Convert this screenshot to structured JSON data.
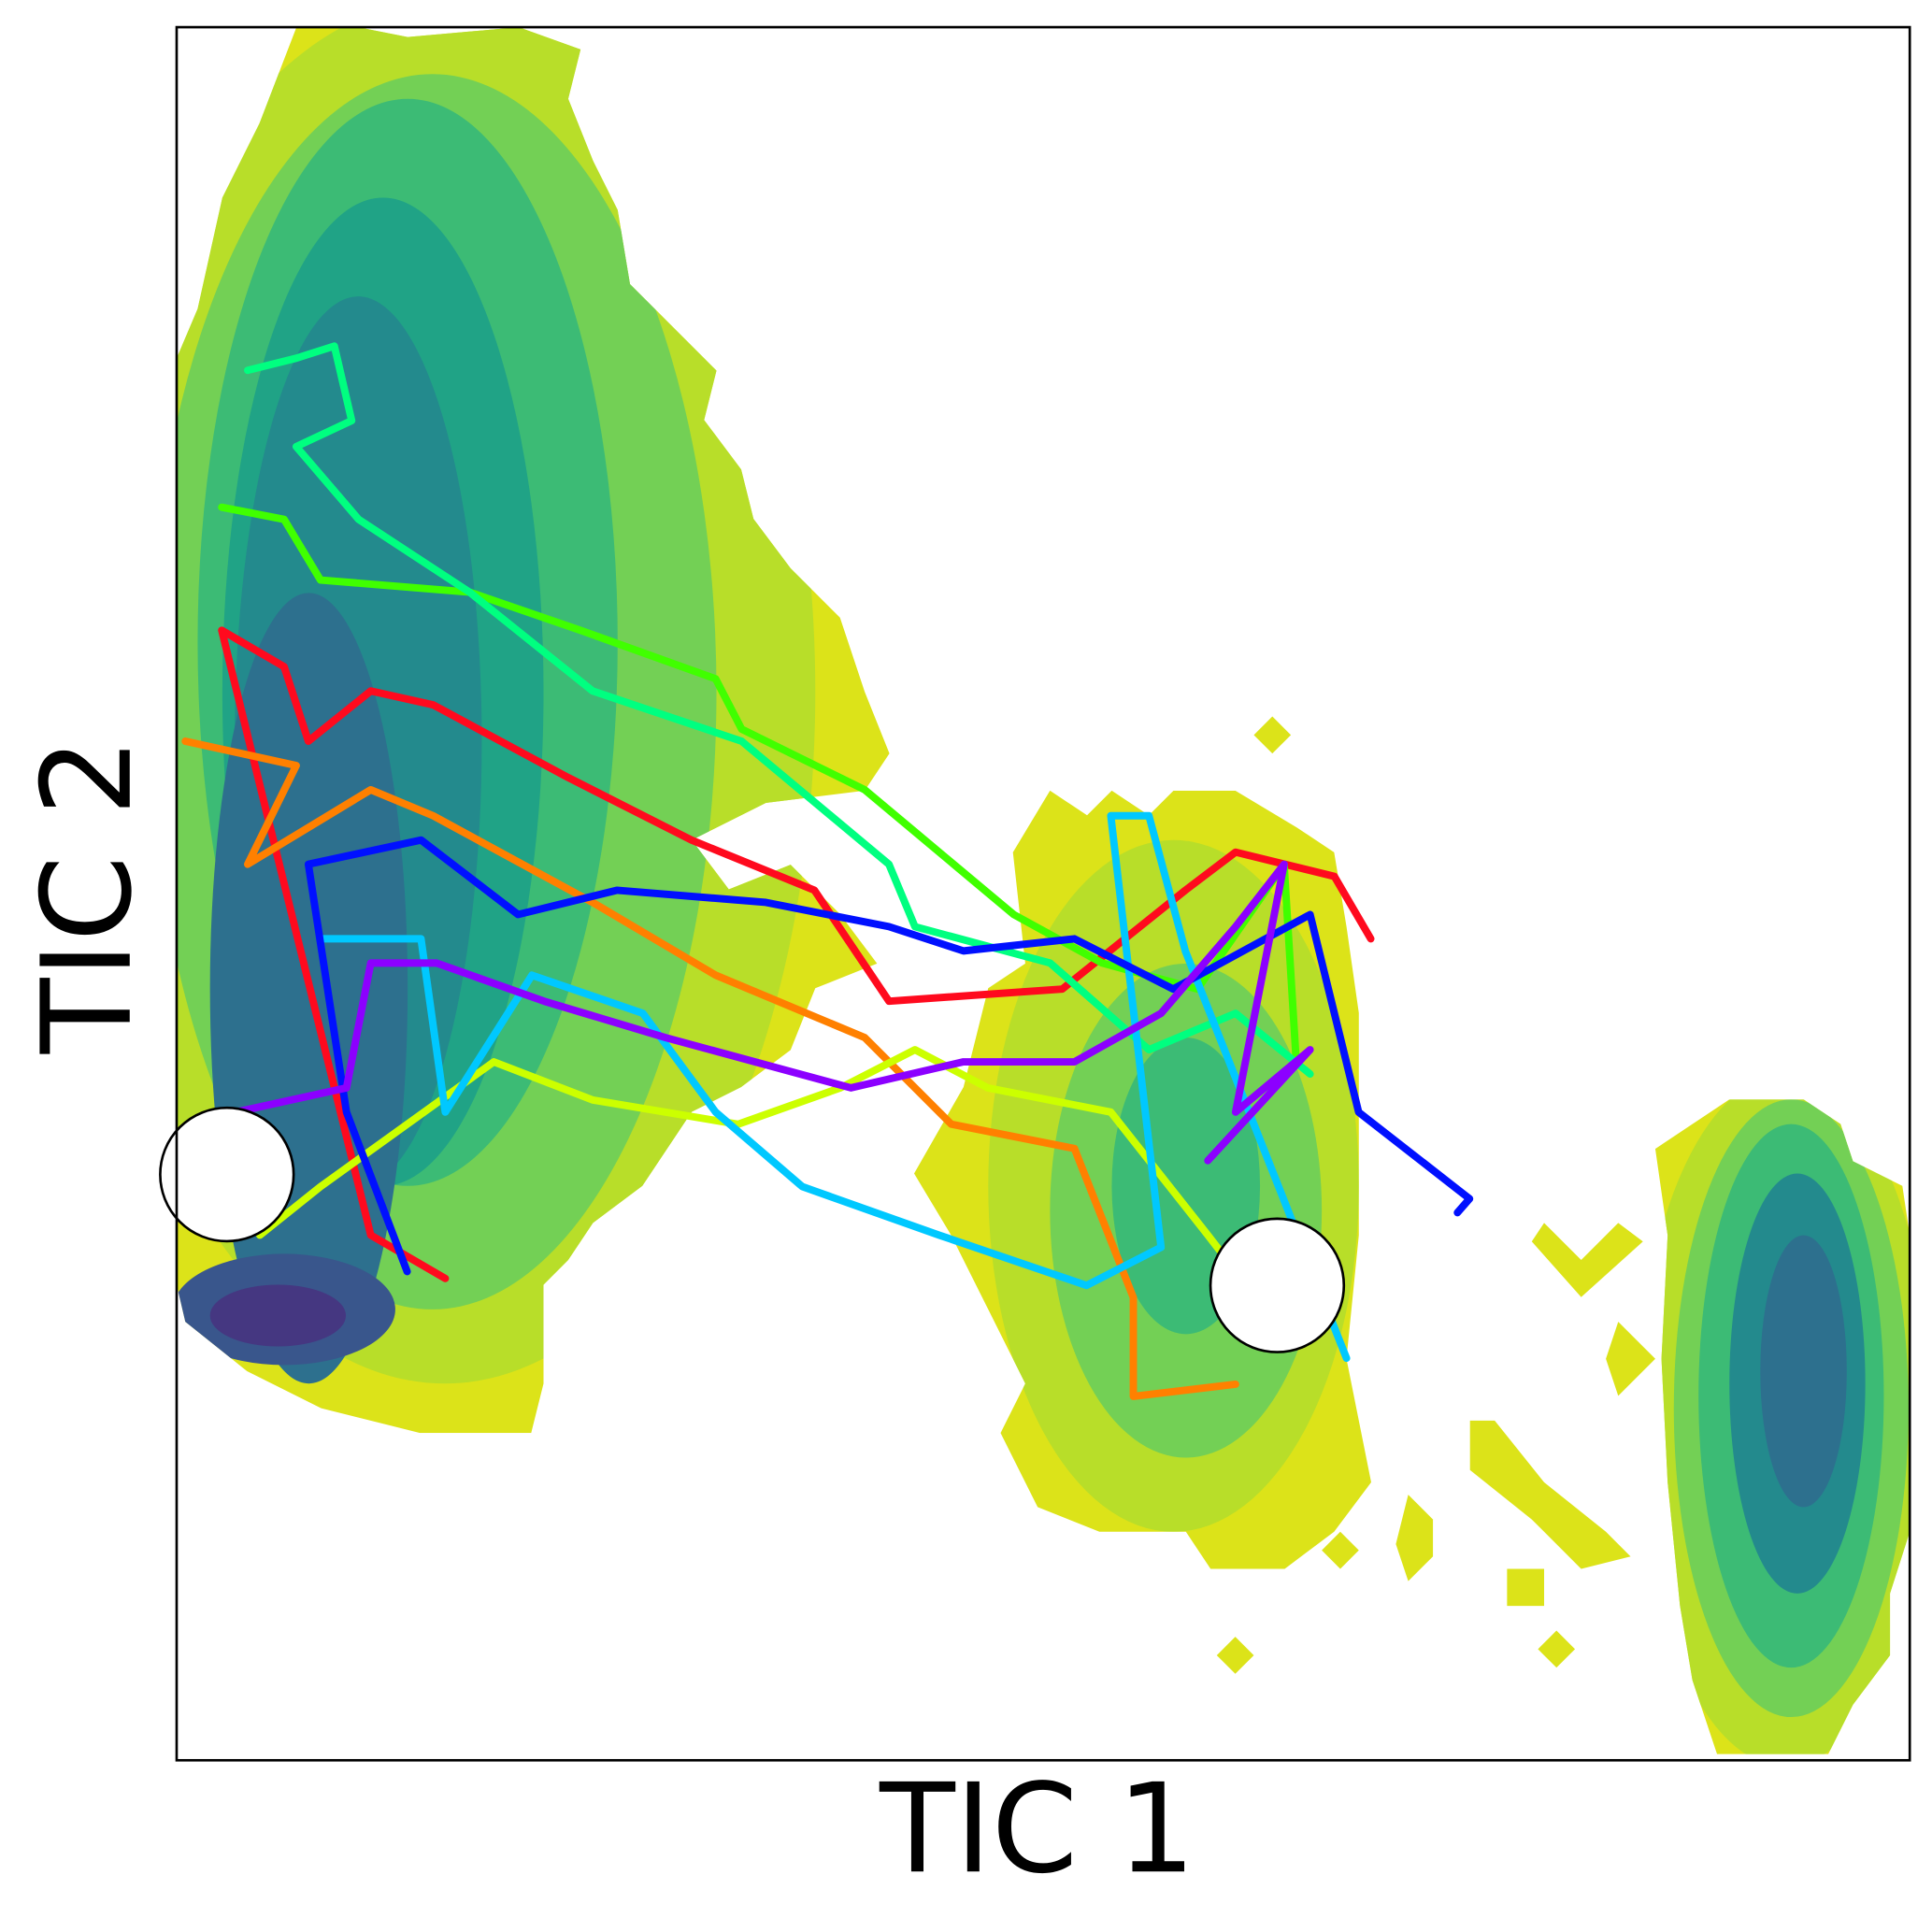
{
  "chart_data": {
    "type": "line",
    "xlabel": "TIC 1",
    "ylabel": "TIC 2",
    "xlim": [
      0,
      100
    ],
    "ylim": [
      0,
      100
    ],
    "series": [
      {
        "color": "#ff0a1e",
        "x": [
          15.5,
          11.2,
          2.6,
          6.2,
          7.6,
          11.2,
          14.8,
          22.6,
          29.7,
          36.8,
          41.1,
          51.1,
          58.2,
          61.1,
          66.8,
          68.9
        ],
        "y": [
          27.8,
          30.3,
          65.2,
          63.1,
          58.8,
          61.7,
          60.9,
          56.7,
          53.1,
          50.2,
          43.8,
          44.5,
          50.2,
          52.4,
          51.0,
          47.4
        ]
      },
      {
        "color": "#ff8000",
        "x": [
          0.5,
          6.9,
          4.1,
          11.2,
          14.8,
          24.0,
          31.1,
          39.7,
          44.7,
          51.8,
          55.2,
          55.2,
          61.1
        ],
        "y": [
          58.8,
          57.4,
          51.7,
          56.0,
          54.5,
          49.5,
          45.3,
          41.7,
          36.7,
          35.3,
          26.7,
          21.0,
          21.7
        ]
      },
      {
        "color": "#ccff00",
        "x": [
          4.8,
          8.3,
          18.3,
          24.0,
          32.4,
          38.3,
          42.6,
          46.8,
          53.9,
          59.5,
          63.9
        ],
        "y": [
          30.3,
          33.1,
          40.3,
          38.1,
          36.7,
          38.8,
          41.0,
          38.8,
          37.4,
          30.3,
          24.6
        ]
      },
      {
        "color": "#40ff00",
        "x": [
          2.6,
          6.2,
          8.3,
          16.9,
          23.3,
          31.1,
          32.6,
          39.7,
          48.3,
          53.4,
          58.9,
          63.9,
          64.6
        ],
        "y": [
          72.3,
          71.6,
          68.1,
          67.4,
          65.2,
          62.4,
          59.5,
          56.0,
          48.8,
          46.0,
          44.5,
          51.7,
          40.3
        ]
      },
      {
        "color": "#00ff80",
        "x": [
          4.1,
          6.9,
          9.1,
          10.1,
          6.9,
          10.5,
          16.9,
          24.0,
          32.6,
          41.1,
          42.6,
          50.4,
          56.1,
          61.1,
          65.4
        ],
        "y": [
          80.2,
          80.9,
          81.6,
          77.3,
          75.8,
          71.6,
          67.4,
          61.7,
          58.8,
          51.7,
          48.1,
          46.0,
          41.0,
          43.1,
          39.6
        ]
      },
      {
        "color": "#00c8ff",
        "x": [
          8.3,
          14.1,
          15.5,
          20.5,
          26.9,
          31.1,
          36.1,
          44.0,
          52.5,
          56.8,
          53.9,
          56.1,
          58.2,
          67.5
        ],
        "y": [
          47.4,
          47.4,
          37.4,
          45.3,
          43.1,
          37.4,
          33.1,
          30.3,
          27.4,
          29.6,
          54.5,
          54.5,
          46.7,
          23.2
        ]
      },
      {
        "color": "#0010ff",
        "x": [
          13.3,
          9.8,
          7.6,
          14.1,
          19.7,
          25.4,
          34.0,
          41.1,
          45.4,
          51.8,
          57.5,
          65.4,
          68.2,
          74.6,
          73.9
        ],
        "y": [
          28.2,
          37.4,
          51.7,
          53.1,
          48.8,
          50.2,
          49.5,
          48.1,
          46.7,
          47.4,
          44.5,
          48.8,
          37.4,
          32.4,
          31.6
        ]
      },
      {
        "color": "#8c00ff",
        "x": [
          3.4,
          9.8,
          11.2,
          15.0,
          21.2,
          28.2,
          38.9,
          45.4,
          51.8,
          56.8,
          61.1,
          63.9,
          61.1,
          65.4,
          59.5
        ],
        "y": [
          37.4,
          38.8,
          46.0,
          46.0,
          43.8,
          41.7,
          38.8,
          40.3,
          40.3,
          43.1,
          48.1,
          51.7,
          37.4,
          41.0,
          34.6
        ]
      }
    ],
    "markers": {
      "color": "#ffffff",
      "x": [
        2.9,
        63.5
      ],
      "y": [
        33.8,
        27.4
      ]
    }
  }
}
